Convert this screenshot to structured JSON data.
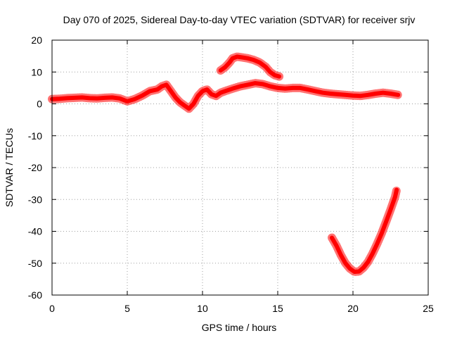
{
  "chart_data": {
    "type": "line",
    "title": "Day 070 of 2025, Sidereal Day-to-day VTEC variation (SDTVAR) for receiver srjv",
    "xlabel": "GPS time / hours",
    "ylabel": "SDTVAR / TECUs",
    "xlim": [
      0,
      25
    ],
    "ylim": [
      -60,
      20
    ],
    "xticks": [
      0,
      5,
      10,
      15,
      20,
      25
    ],
    "yticks": [
      -60,
      -50,
      -40,
      -30,
      -20,
      -10,
      0,
      10,
      20
    ],
    "grid": true,
    "series_color": "#ff0000",
    "series": [
      {
        "name": "segment-1",
        "x": [
          0,
          0.5,
          1,
          1.5,
          2,
          2.5,
          3,
          3.5,
          4,
          4.5,
          5,
          5.5,
          6,
          6.5,
          7,
          7.3,
          7.6,
          7.9,
          8.2,
          8.5,
          8.8,
          9.1,
          9.4,
          9.7,
          10,
          10.3,
          10.6,
          10.9,
          11.2,
          11.5,
          12,
          12.5,
          13,
          13.5,
          14,
          14.5,
          15,
          15.5,
          16,
          16.5,
          17,
          17.5,
          18,
          18.5,
          19,
          19.5,
          20,
          20.5,
          21,
          21.5,
          22,
          22.5,
          23
        ],
        "y": [
          1.5,
          1.6,
          1.8,
          1.9,
          2,
          1.8,
          1.7,
          1.9,
          2,
          1.7,
          0.8,
          1.5,
          2.6,
          4,
          4.5,
          5.5,
          6,
          4,
          2,
          0.5,
          -0.5,
          -1.5,
          0,
          2.5,
          4,
          4.5,
          3,
          2.5,
          3.5,
          4,
          4.8,
          5.5,
          6,
          6.5,
          6.2,
          5.5,
          5,
          4.8,
          5,
          5,
          4.5,
          4,
          3.5,
          3.2,
          3,
          2.8,
          2.6,
          2.5,
          2.8,
          3.2,
          3.5,
          3.2,
          2.8
        ]
      },
      {
        "name": "segment-2",
        "x": [
          11.2,
          11.5,
          11.8,
          12,
          12.3,
          12.6,
          13,
          13.4,
          13.8,
          14.2,
          14.5,
          14.8,
          15.1
        ],
        "y": [
          10.5,
          11.5,
          13,
          14.3,
          14.8,
          14.6,
          14.3,
          13.8,
          13,
          11.6,
          10,
          9,
          8.6
        ]
      },
      {
        "name": "segment-3",
        "x": [
          18.6,
          18.9,
          19.2,
          19.5,
          19.8,
          20.1,
          20.4,
          20.7,
          21,
          21.3,
          21.6,
          21.9,
          22.2,
          22.5,
          22.8,
          22.9
        ],
        "y": [
          -42,
          -44.5,
          -47.5,
          -50,
          -51.7,
          -52.7,
          -52.6,
          -51.4,
          -49.6,
          -47,
          -44,
          -40.7,
          -37,
          -33.2,
          -29.2,
          -27
        ]
      }
    ]
  }
}
